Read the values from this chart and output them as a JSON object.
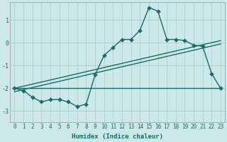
{
  "xlabel": "Humidex (Indice chaleur)",
  "bg_color": "#cce8e8",
  "grid_color": "#aacccc",
  "line_color": "#1a6b6b",
  "x_ticks": [
    0,
    1,
    2,
    3,
    4,
    5,
    6,
    7,
    8,
    9,
    10,
    11,
    12,
    13,
    14,
    15,
    16,
    17,
    18,
    19,
    20,
    21,
    22,
    23
  ],
  "ylim": [
    -3.5,
    1.8
  ],
  "xlim": [
    -0.5,
    23.5
  ],
  "series1_x": [
    0,
    1,
    2,
    3,
    4,
    5,
    6,
    7,
    8,
    9,
    10,
    11,
    12,
    13,
    14,
    15,
    16,
    17,
    18,
    19,
    20,
    21,
    22,
    23
  ],
  "series1_y": [
    -2.0,
    -2.1,
    -2.4,
    -2.6,
    -2.5,
    -2.5,
    -2.6,
    -2.8,
    -2.7,
    -1.4,
    -0.55,
    -0.2,
    0.15,
    0.15,
    0.55,
    1.55,
    1.4,
    0.15,
    0.15,
    0.1,
    -0.1,
    -0.15,
    -1.35,
    -2.0
  ],
  "series2_x": [
    0,
    23
  ],
  "series2_y": [
    -2.0,
    -2.0
  ],
  "series3_x": [
    0,
    23
  ],
  "series3_y": [
    -2.15,
    -0.05
  ],
  "series4_x": [
    0,
    23
  ],
  "series4_y": [
    -2.0,
    0.1
  ],
  "markersize": 3,
  "linewidth": 1.0,
  "tick_fontsize": 5.5,
  "xlabel_fontsize": 6.5
}
